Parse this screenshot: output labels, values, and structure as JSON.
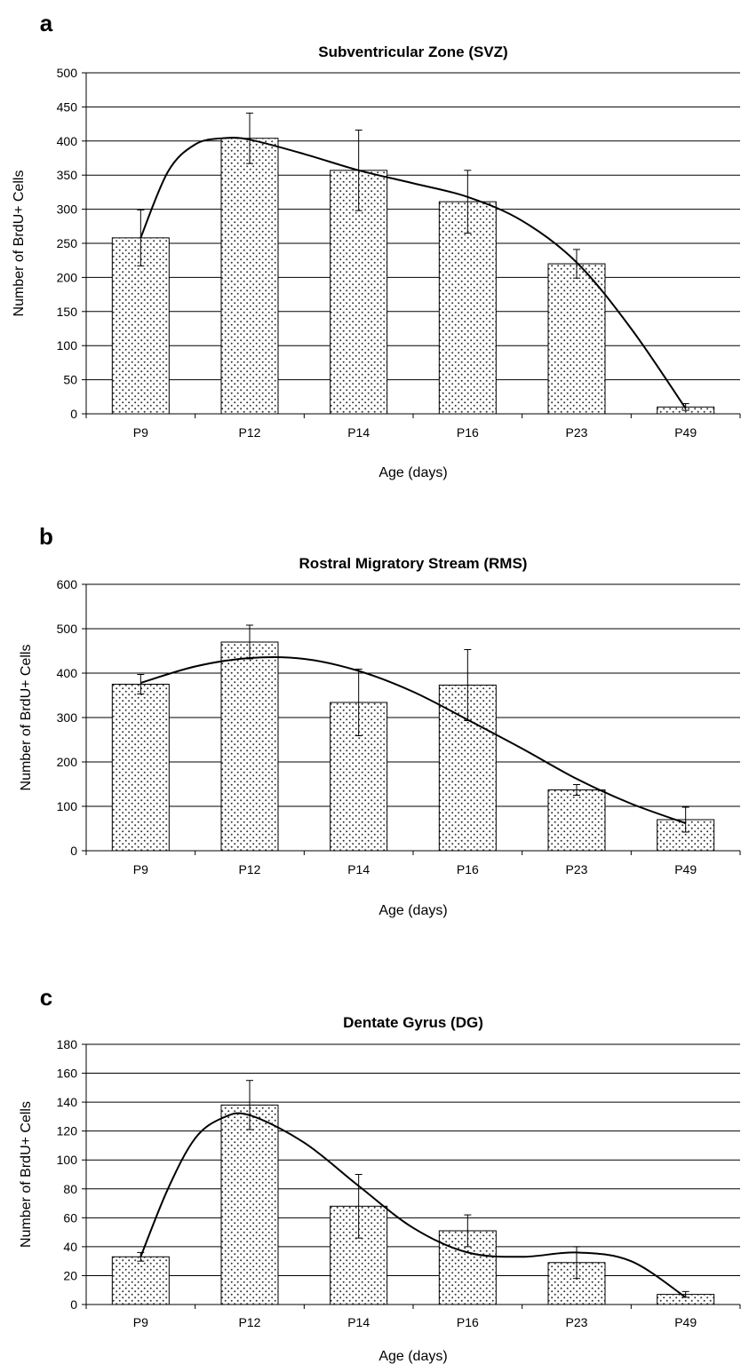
{
  "chart_data": [
    {
      "type": "bar",
      "panel": "a",
      "title": "Subventricular Zone (SVZ)",
      "xlabel": "Age (days)",
      "ylabel": "Number of BrdU+ Cells",
      "categories": [
        "P9",
        "P12",
        "P14",
        "P16",
        "P23",
        "P49"
      ],
      "values": [
        258,
        404,
        357,
        311,
        220,
        10
      ],
      "errors": [
        41,
        37,
        59,
        46,
        21,
        5
      ],
      "ylim": [
        0,
        500
      ],
      "ytick_step": 50,
      "yticks": [
        "0",
        "50",
        "100",
        "150",
        "200",
        "250",
        "300",
        "350",
        "400",
        "450",
        "500"
      ],
      "grid": true,
      "trendline": [
        [
          0,
          258
        ],
        [
          0.25,
          355
        ],
        [
          0.5,
          395
        ],
        [
          0.75,
          404
        ],
        [
          1,
          402
        ],
        [
          1.5,
          381
        ],
        [
          2,
          357
        ],
        [
          2.5,
          338
        ],
        [
          3,
          318
        ],
        [
          3.5,
          283
        ],
        [
          4,
          222
        ],
        [
          4.5,
          125
        ],
        [
          5,
          8
        ]
      ]
    },
    {
      "type": "bar",
      "panel": "b",
      "title": "Rostral Migratory Stream (RMS)",
      "xlabel": "Age (days)",
      "ylabel": "Number of BrdU+ Cells",
      "categories": [
        "P9",
        "P12",
        "P14",
        "P16",
        "P23",
        "P49"
      ],
      "values": [
        375,
        470,
        334,
        373,
        137,
        70
      ],
      "errors": [
        22,
        38,
        75,
        80,
        12,
        28
      ],
      "ylim": [
        0,
        600
      ],
      "ytick_step": 100,
      "yticks": [
        "0",
        "100",
        "200",
        "300",
        "400",
        "500",
        "600"
      ],
      "grid": true,
      "trendline": [
        [
          0,
          378
        ],
        [
          0.5,
          415
        ],
        [
          1,
          434
        ],
        [
          1.5,
          432
        ],
        [
          2,
          405
        ],
        [
          2.5,
          358
        ],
        [
          3,
          295
        ],
        [
          3.5,
          230
        ],
        [
          4,
          162
        ],
        [
          4.5,
          106
        ],
        [
          5,
          62
        ]
      ]
    },
    {
      "type": "bar",
      "panel": "c",
      "title": "Dentate Gyrus (DG)",
      "xlabel": "Age (days)",
      "ylabel": "Number of BrdU+ Cells",
      "categories": [
        "P9",
        "P12",
        "P14",
        "P16",
        "P23",
        "P49"
      ],
      "values": [
        33,
        138,
        68,
        51,
        29,
        7
      ],
      "errors": [
        3,
        17,
        22,
        11,
        11,
        2
      ],
      "ylim": [
        0,
        180
      ],
      "ytick_step": 20,
      "yticks": [
        "0",
        "20",
        "40",
        "60",
        "80",
        "100",
        "120",
        "140",
        "160",
        "180"
      ],
      "grid": true,
      "trendline": [
        [
          0,
          33
        ],
        [
          0.25,
          80
        ],
        [
          0.5,
          115
        ],
        [
          0.75,
          129
        ],
        [
          1,
          131
        ],
        [
          1.5,
          112
        ],
        [
          2,
          82
        ],
        [
          2.5,
          53
        ],
        [
          3,
          36
        ],
        [
          3.5,
          33
        ],
        [
          4,
          36
        ],
        [
          4.5,
          30
        ],
        [
          5,
          5
        ]
      ]
    }
  ]
}
